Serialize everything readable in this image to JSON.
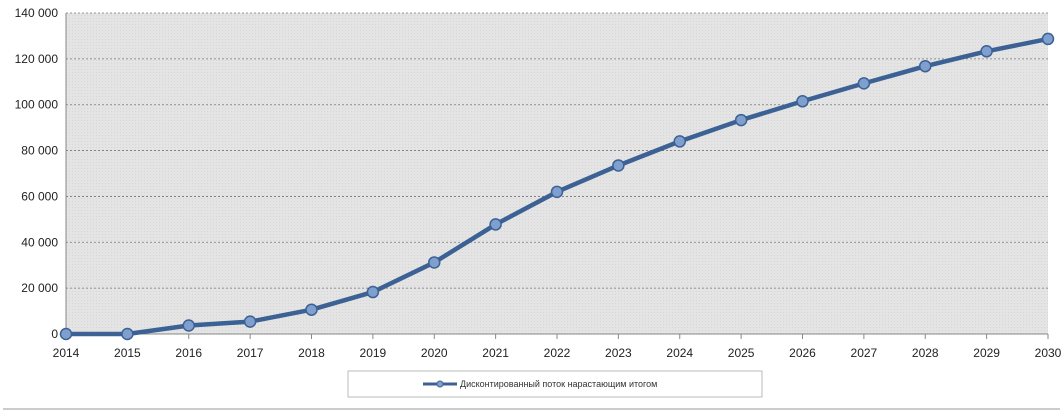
{
  "chart_data": {
    "type": "line",
    "title": "",
    "xlabel": "",
    "ylabel": "",
    "x": [
      "2014",
      "2015",
      "2016",
      "2017",
      "2018",
      "2019",
      "2020",
      "2021",
      "2022",
      "2023",
      "2024",
      "2025",
      "2026",
      "2027",
      "2028",
      "2029",
      "2030"
    ],
    "series": [
      {
        "name": "Дисконтированный поток нарастающим итогом",
        "values": [
          0,
          0,
          3700,
          5400,
          10600,
          18300,
          31200,
          47800,
          62000,
          73500,
          84000,
          93300,
          101500,
          109300,
          116800,
          123300,
          128700
        ]
      }
    ],
    "ylim": [
      0,
      140000
    ],
    "yticks": [
      0,
      20000,
      40000,
      60000,
      80000,
      100000,
      120000,
      140000
    ],
    "ytick_labels": [
      "0",
      "20 000",
      "40 000",
      "60 000",
      "80 000",
      "100 000",
      "120 000",
      "140 000"
    ],
    "grid": true,
    "legend_position": "bottom-center",
    "colors": {
      "line": "#3c6194",
      "marker_fill": "#7f9fcf",
      "plot_background": "#e3e3e3",
      "grid": "#777777"
    }
  }
}
